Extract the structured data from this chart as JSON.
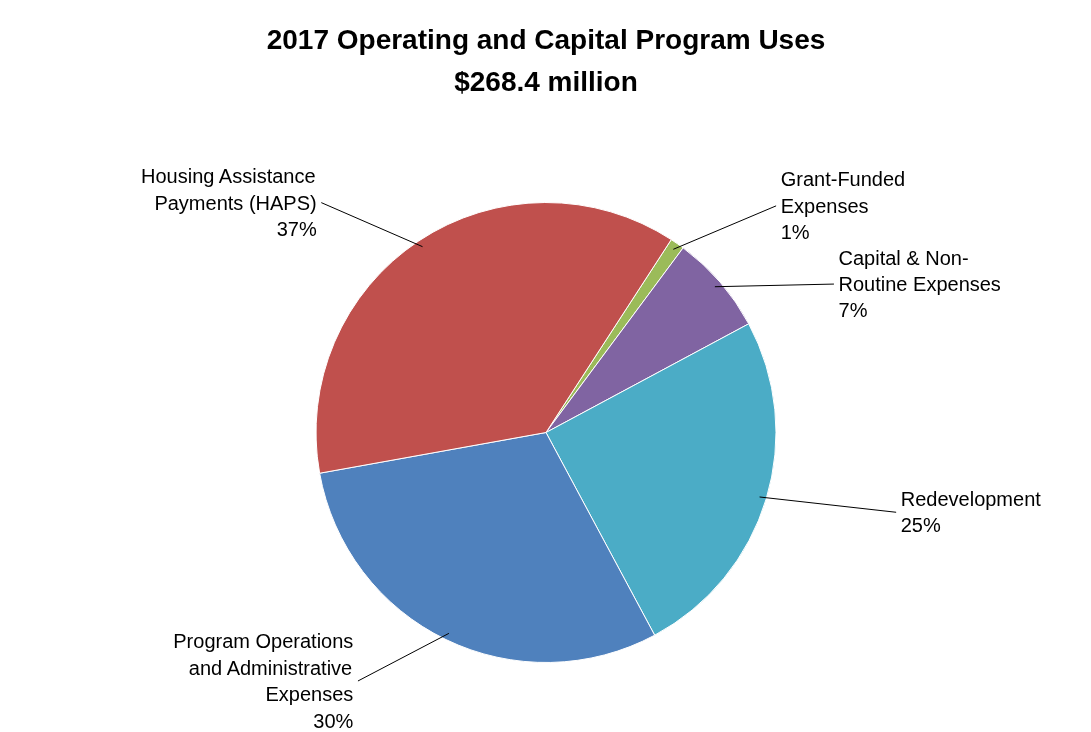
{
  "chart_data": {
    "type": "pie",
    "title": "2017 Operating and Capital Program Uses",
    "subtitle": "$268.4 million",
    "categories": [
      "Grant-Funded Expenses",
      "Capital & Non-Routine Expenses",
      "Redevelopment",
      "Program Operations and Administrative Expenses",
      "Housing Assistance Payments (HAPS)"
    ],
    "values": [
      1,
      7,
      25,
      30,
      37
    ],
    "colors": [
      "#9bbb59",
      "#8064a2",
      "#4bacc6",
      "#4f81bd",
      "#c0504d"
    ],
    "value_labels": [
      "1%",
      "7%",
      "25%",
      "30%",
      "37%"
    ]
  }
}
